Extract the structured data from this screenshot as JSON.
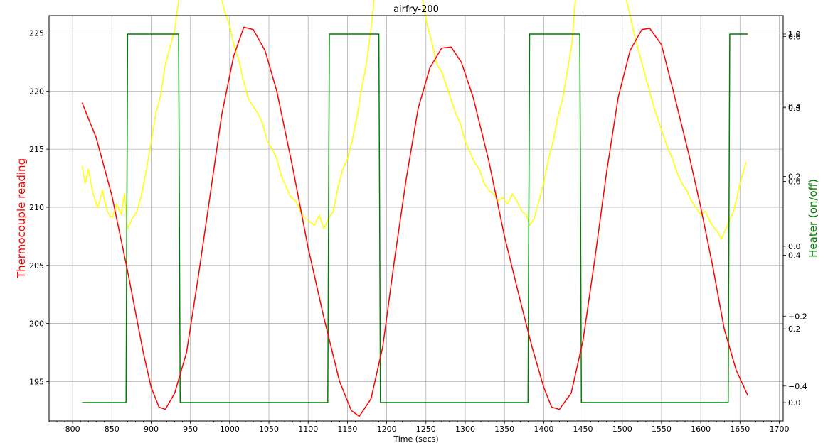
{
  "chart_data": {
    "type": "line",
    "title": "airfry-200",
    "xlabel": "Time (secs)",
    "ylabel_left": "Thermocouple reading",
    "ylabel_right": "Heater (on/off)",
    "xlim": [
      770,
      1705
    ],
    "ylim_left": [
      191.6,
      226.5
    ],
    "ylim_right_heater": [
      -0.05,
      1.05
    ],
    "ylim_right_secondary": [
      -0.5,
      0.66
    ],
    "x_ticks": [
      800,
      850,
      900,
      950,
      1000,
      1050,
      1100,
      1150,
      1200,
      1250,
      1300,
      1350,
      1400,
      1450,
      1500,
      1550,
      1600,
      1650,
      1700
    ],
    "y_left_ticks": [
      195,
      200,
      205,
      210,
      215,
      220,
      225
    ],
    "y_right_heater_ticks": [
      "0.0",
      "0.2",
      "0.4",
      "0.6",
      "0.8",
      "1.0"
    ],
    "y_right_secondary_ticks": [
      "−0.4",
      "−0.2",
      "0.0",
      "0.2",
      "0.4",
      "0.6"
    ],
    "y_right_heater_tick_values": [
      0.0,
      0.2,
      0.4,
      0.6,
      0.8,
      1.0
    ],
    "y_right_secondary_tick_values": [
      -0.4,
      -0.2,
      0.0,
      0.2,
      0.4,
      0.6
    ],
    "grid": true,
    "colors": {
      "thermocouple": "#ff0000",
      "heater": "#008000",
      "rate": "#ffff00",
      "left_label": "#ff0000",
      "right_label": "#008000",
      "grid": "#b0b0b0"
    },
    "series": [
      {
        "key": "thermocouple",
        "axis": "left",
        "points": [
          [
            812,
            219.0
          ],
          [
            830,
            216.0
          ],
          [
            850,
            211.0
          ],
          [
            870,
            204.5
          ],
          [
            880,
            201.0
          ],
          [
            890,
            197.5
          ],
          [
            900,
            194.5
          ],
          [
            910,
            192.8
          ],
          [
            918,
            192.6
          ],
          [
            930,
            194.0
          ],
          [
            945,
            197.5
          ],
          [
            960,
            204.0
          ],
          [
            975,
            211.0
          ],
          [
            990,
            218.0
          ],
          [
            1005,
            223.0
          ],
          [
            1018,
            225.5
          ],
          [
            1030,
            225.3
          ],
          [
            1045,
            223.5
          ],
          [
            1060,
            220.0
          ],
          [
            1080,
            213.5
          ],
          [
            1100,
            206.5
          ],
          [
            1120,
            200.5
          ],
          [
            1140,
            195.0
          ],
          [
            1155,
            192.5
          ],
          [
            1165,
            192.0
          ],
          [
            1180,
            193.5
          ],
          [
            1195,
            198.0
          ],
          [
            1210,
            205.5
          ],
          [
            1225,
            212.5
          ],
          [
            1240,
            218.5
          ],
          [
            1255,
            222.0
          ],
          [
            1270,
            223.7
          ],
          [
            1282,
            223.8
          ],
          [
            1295,
            222.5
          ],
          [
            1310,
            219.5
          ],
          [
            1330,
            214.0
          ],
          [
            1350,
            207.5
          ],
          [
            1370,
            202.0
          ],
          [
            1385,
            198.0
          ],
          [
            1400,
            194.5
          ],
          [
            1410,
            192.8
          ],
          [
            1420,
            192.6
          ],
          [
            1435,
            194.0
          ],
          [
            1450,
            198.5
          ],
          [
            1465,
            205.5
          ],
          [
            1480,
            213.0
          ],
          [
            1495,
            219.5
          ],
          [
            1510,
            223.5
          ],
          [
            1525,
            225.3
          ],
          [
            1535,
            225.4
          ],
          [
            1550,
            224.0
          ],
          [
            1565,
            220.0
          ],
          [
            1585,
            214.5
          ],
          [
            1600,
            210.0
          ],
          [
            1615,
            205.0
          ],
          [
            1630,
            199.5
          ],
          [
            1645,
            196.0
          ],
          [
            1660,
            193.8
          ]
        ]
      },
      {
        "key": "heater",
        "axis": "right_heater",
        "points": [
          [
            812,
            0
          ],
          [
            868,
            0
          ],
          [
            870,
            1
          ],
          [
            935,
            1
          ],
          [
            937,
            0
          ],
          [
            1125,
            0
          ],
          [
            1127,
            1
          ],
          [
            1190,
            1
          ],
          [
            1192,
            0
          ],
          [
            1380,
            0
          ],
          [
            1382,
            1
          ],
          [
            1446,
            1
          ],
          [
            1448,
            0
          ],
          [
            1635,
            0
          ],
          [
            1637,
            1
          ],
          [
            1660,
            1
          ]
        ]
      },
      {
        "key": "rate",
        "axis": "right_secondary",
        "points": [
          [
            812,
            0.23
          ],
          [
            816,
            0.18
          ],
          [
            820,
            0.22
          ],
          [
            826,
            0.15
          ],
          [
            832,
            0.11
          ],
          [
            838,
            0.16
          ],
          [
            844,
            0.1
          ],
          [
            850,
            0.08
          ],
          [
            856,
            0.12
          ],
          [
            862,
            0.09
          ],
          [
            866,
            0.15
          ],
          [
            870,
            0.05
          ],
          [
            876,
            0.08
          ],
          [
            882,
            0.1
          ],
          [
            888,
            0.15
          ],
          [
            894,
            0.22
          ],
          [
            900,
            0.3
          ],
          [
            906,
            0.38
          ],
          [
            912,
            0.43
          ],
          [
            918,
            0.52
          ],
          [
            924,
            0.57
          ],
          [
            930,
            0.62
          ],
          [
            936,
            0.72
          ],
          [
            940,
            0.75
          ],
          [
            944,
            0.82
          ],
          [
            948,
            0.87
          ],
          [
            952,
            0.96
          ],
          [
            956,
            1.04
          ],
          [
            958,
            1.08
          ],
          [
            962,
            1.0
          ],
          [
            966,
            0.95
          ],
          [
            970,
            0.92
          ],
          [
            976,
            0.85
          ],
          [
            982,
            0.8
          ],
          [
            988,
            0.72
          ],
          [
            994,
            0.67
          ],
          [
            1000,
            0.63
          ],
          [
            1006,
            0.57
          ],
          [
            1012,
            0.53
          ],
          [
            1018,
            0.47
          ],
          [
            1024,
            0.42
          ],
          [
            1030,
            0.4
          ],
          [
            1036,
            0.38
          ],
          [
            1042,
            0.35
          ],
          [
            1048,
            0.3
          ],
          [
            1054,
            0.28
          ],
          [
            1060,
            0.25
          ],
          [
            1066,
            0.2
          ],
          [
            1072,
            0.17
          ],
          [
            1078,
            0.14
          ],
          [
            1084,
            0.13
          ],
          [
            1090,
            0.1
          ],
          [
            1096,
            0.08
          ],
          [
            1102,
            0.07
          ],
          [
            1108,
            0.06
          ],
          [
            1114,
            0.09
          ],
          [
            1120,
            0.05
          ],
          [
            1126,
            0.08
          ],
          [
            1132,
            0.1
          ],
          [
            1138,
            0.17
          ],
          [
            1144,
            0.22
          ],
          [
            1150,
            0.25
          ],
          [
            1156,
            0.3
          ],
          [
            1162,
            0.37
          ],
          [
            1168,
            0.45
          ],
          [
            1174,
            0.52
          ],
          [
            1180,
            0.62
          ],
          [
            1186,
            0.75
          ],
          [
            1190,
            0.83
          ],
          [
            1194,
            0.92
          ],
          [
            1198,
            0.97
          ],
          [
            1202,
            1.02
          ],
          [
            1206,
            1.05
          ],
          [
            1210,
            0.98
          ],
          [
            1216,
            0.93
          ],
          [
            1222,
            0.9
          ],
          [
            1228,
            0.85
          ],
          [
            1234,
            0.8
          ],
          [
            1240,
            0.75
          ],
          [
            1246,
            0.7
          ],
          [
            1252,
            0.63
          ],
          [
            1258,
            0.58
          ],
          [
            1264,
            0.52
          ],
          [
            1270,
            0.5
          ],
          [
            1276,
            0.46
          ],
          [
            1282,
            0.42
          ],
          [
            1288,
            0.38
          ],
          [
            1294,
            0.35
          ],
          [
            1300,
            0.3
          ],
          [
            1306,
            0.27
          ],
          [
            1312,
            0.24
          ],
          [
            1318,
            0.22
          ],
          [
            1324,
            0.18
          ],
          [
            1330,
            0.16
          ],
          [
            1336,
            0.15
          ],
          [
            1342,
            0.13
          ],
          [
            1348,
            0.14
          ],
          [
            1354,
            0.12
          ],
          [
            1360,
            0.15
          ],
          [
            1366,
            0.13
          ],
          [
            1372,
            0.1
          ],
          [
            1378,
            0.09
          ],
          [
            1382,
            0.06
          ],
          [
            1388,
            0.08
          ],
          [
            1394,
            0.13
          ],
          [
            1400,
            0.18
          ],
          [
            1406,
            0.25
          ],
          [
            1412,
            0.3
          ],
          [
            1418,
            0.37
          ],
          [
            1424,
            0.42
          ],
          [
            1430,
            0.5
          ],
          [
            1436,
            0.58
          ],
          [
            1440,
            0.7
          ],
          [
            1444,
            0.8
          ],
          [
            1448,
            0.9
          ],
          [
            1452,
            0.95
          ],
          [
            1456,
            0.88
          ],
          [
            1460,
            0.94
          ],
          [
            1464,
            0.96
          ],
          [
            1468,
            1.02
          ],
          [
            1472,
            0.98
          ],
          [
            1476,
            1.05
          ],
          [
            1480,
            0.95
          ],
          [
            1486,
            0.88
          ],
          [
            1492,
            0.83
          ],
          [
            1498,
            0.78
          ],
          [
            1504,
            0.72
          ],
          [
            1510,
            0.66
          ],
          [
            1516,
            0.6
          ],
          [
            1522,
            0.55
          ],
          [
            1528,
            0.5
          ],
          [
            1534,
            0.45
          ],
          [
            1540,
            0.4
          ],
          [
            1546,
            0.36
          ],
          [
            1552,
            0.32
          ],
          [
            1558,
            0.28
          ],
          [
            1564,
            0.25
          ],
          [
            1570,
            0.21
          ],
          [
            1576,
            0.18
          ],
          [
            1582,
            0.16
          ],
          [
            1588,
            0.13
          ],
          [
            1594,
            0.11
          ],
          [
            1600,
            0.09
          ],
          [
            1606,
            0.1
          ],
          [
            1612,
            0.07
          ],
          [
            1618,
            0.05
          ],
          [
            1622,
            0.04
          ],
          [
            1626,
            0.02
          ],
          [
            1630,
            0.04
          ],
          [
            1634,
            0.06
          ],
          [
            1638,
            0.08
          ],
          [
            1642,
            0.1
          ],
          [
            1646,
            0.14
          ],
          [
            1650,
            0.18
          ],
          [
            1654,
            0.21
          ],
          [
            1658,
            0.24
          ]
        ]
      }
    ]
  }
}
